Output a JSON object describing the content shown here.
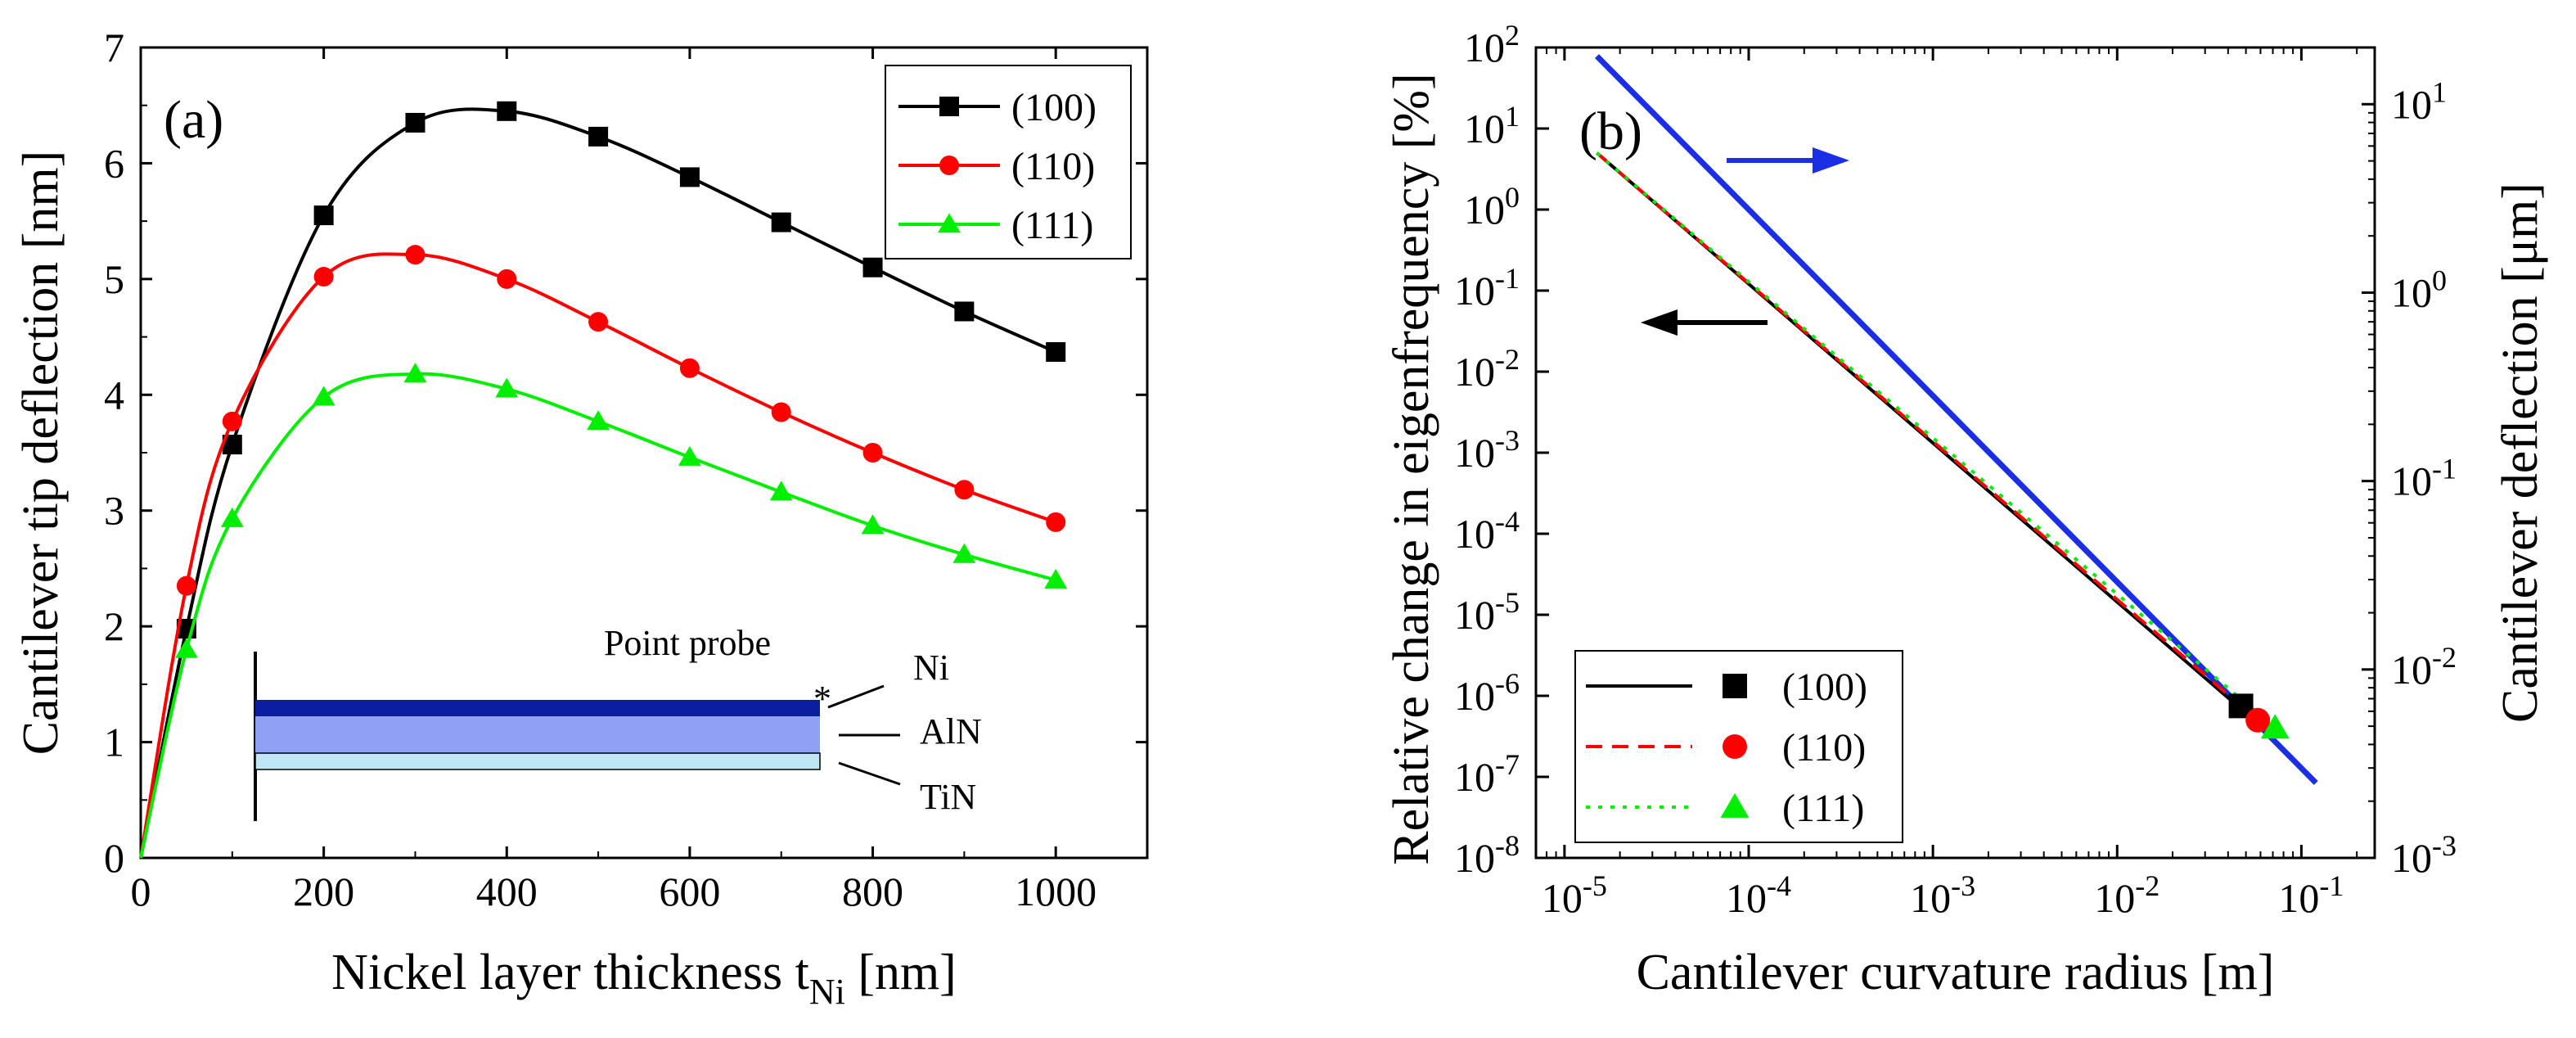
{
  "chart_data": [
    {
      "type": "line",
      "panel_label": "(a)",
      "xlabel_main": "Nickel layer thickness t",
      "xlabel_sub": "Ni",
      "xlabel_unit": "[nm]",
      "ylabel": "Cantilever tip deflection [nm]",
      "xlim": [
        0,
        1100
      ],
      "ylim": [
        0,
        7
      ],
      "xticks": [
        0,
        200,
        400,
        600,
        800,
        1000
      ],
      "yticks": [
        0,
        1,
        2,
        3,
        4,
        5,
        6,
        7
      ],
      "legend_position": "top-right",
      "series": [
        {
          "name": "(100)",
          "color": "#000000",
          "marker": "square",
          "x": [
            0,
            50,
            100,
            200,
            300,
            400,
            500,
            600,
            700,
            800,
            900,
            1000
          ],
          "y": [
            0,
            1.98,
            3.57,
            5.55,
            6.35,
            6.45,
            6.23,
            5.88,
            5.49,
            5.1,
            4.72,
            4.37
          ]
        },
        {
          "name": "(110)",
          "color": "#ff0000",
          "marker": "circle",
          "x": [
            0,
            50,
            100,
            200,
            300,
            400,
            500,
            600,
            700,
            800,
            900,
            1000
          ],
          "y": [
            0,
            2.35,
            3.77,
            5.02,
            5.21,
            5.0,
            4.63,
            4.23,
            3.85,
            3.5,
            3.18,
            2.9
          ]
        },
        {
          "name": "(111)",
          "color": "#00ee00",
          "marker": "triangle",
          "x": [
            0,
            50,
            100,
            200,
            300,
            400,
            500,
            600,
            700,
            800,
            900,
            1000
          ],
          "y": [
            0,
            1.8,
            2.93,
            3.98,
            4.18,
            4.05,
            3.77,
            3.46,
            3.16,
            2.87,
            2.62,
            2.4
          ]
        }
      ],
      "inset": {
        "title": "Point probe",
        "marker": "*",
        "layers": [
          {
            "name": "Ni",
            "color": "#0a1e9e"
          },
          {
            "name": "AlN",
            "color": "#8fa0f5"
          },
          {
            "name": "TiN",
            "color": "#bfe6f5"
          }
        ]
      }
    },
    {
      "type": "line",
      "panel_label": "(b)",
      "xlabel": "Cantilever curvature radius [m]",
      "ylabel_left": "Relative change in eigenfrequency [%]",
      "ylabel_right": "Cantilever deflection [μm]",
      "xscale": "log",
      "xlim": [
        7e-06,
        0.25
      ],
      "ylim_left": [
        1e-08,
        100
      ],
      "ylim_right": [
        0.001,
        20
      ],
      "yscale": "log",
      "xtick_exponents": [
        -5,
        -4,
        -3,
        -2,
        -1
      ],
      "ytick_exponents_left": [
        -8,
        -7,
        -6,
        -5,
        -4,
        -3,
        -2,
        -1,
        0,
        1,
        2
      ],
      "ytick_exponents_right": [
        -3,
        -2,
        -1,
        0,
        1
      ],
      "tick_base": "10",
      "legend_position": "bottom-left",
      "series": [
        {
          "name": "(100)",
          "color": "#000000",
          "linestyle": "solid",
          "marker": "square",
          "x": [
            1.5e-05,
            0.045
          ],
          "y": [
            5,
            7.5e-07
          ],
          "marker_x": 0.047,
          "marker_y": 7.5e-07
        },
        {
          "name": "(110)",
          "color": "#ff0000",
          "linestyle": "dashed",
          "marker": "circle",
          "x": [
            1.5e-05,
            0.058
          ],
          "y": [
            5,
            5e-07
          ],
          "marker_x": 0.058,
          "marker_y": 5e-07
        },
        {
          "name": "(111)",
          "color": "#00ee00",
          "linestyle": "dotted",
          "marker": "triangle",
          "x": [
            1.5e-05,
            0.072
          ],
          "y": [
            5,
            4e-07
          ],
          "marker_x": 0.072,
          "marker_y": 4e-07
        }
      ],
      "deflection_curve": {
        "color": "#1a2ee6",
        "x": [
          1.5e-05,
          0.12
        ],
        "y_right": [
          18,
          0.0025
        ],
        "axis": "right"
      },
      "arrows": [
        {
          "direction": "right",
          "color": "#1a2ee6",
          "axis": "right"
        },
        {
          "direction": "left",
          "color": "#000000",
          "axis": "left"
        }
      ]
    }
  ]
}
